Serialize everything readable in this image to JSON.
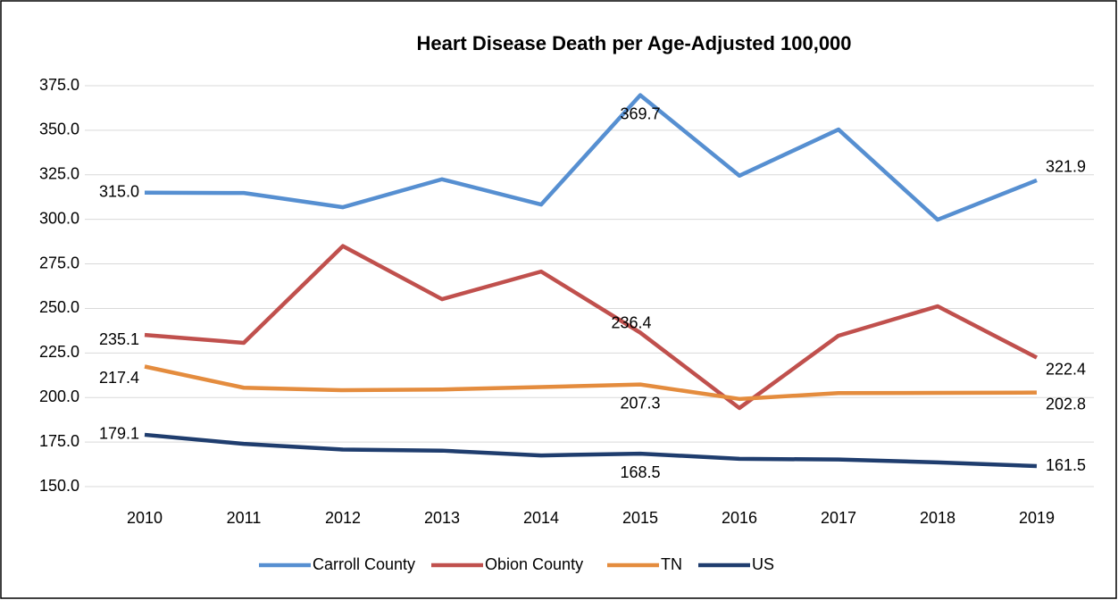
{
  "chart_data": {
    "type": "line",
    "title": "Heart Disease Death per Age-Adjusted 100,000",
    "categories": [
      "2010",
      "2011",
      "2012",
      "2013",
      "2014",
      "2015",
      "2016",
      "2017",
      "2018",
      "2019"
    ],
    "series": [
      {
        "name": "Carroll County",
        "color": "#568fd1",
        "values": [
          315.0,
          314.8,
          306.8,
          322.5,
          308.3,
          369.7,
          324.5,
          350.4,
          299.8,
          321.9
        ],
        "value_labels": [
          "315.0",
          null,
          null,
          null,
          null,
          "369.7",
          null,
          null,
          null,
          "321.9"
        ]
      },
      {
        "name": "Obion County",
        "color": "#c0504d",
        "values": [
          235.1,
          230.7,
          285.0,
          255.2,
          270.7,
          236.4,
          194.1,
          234.7,
          251.2,
          222.4
        ],
        "value_labels": [
          "235.1",
          null,
          null,
          null,
          null,
          "236.4",
          null,
          null,
          null,
          "222.4"
        ]
      },
      {
        "name": "TN",
        "color": "#e48c3e",
        "values": [
          217.4,
          205.5,
          204.1,
          204.5,
          205.9,
          207.3,
          199.2,
          202.5,
          202.6,
          202.8
        ],
        "value_labels": [
          "217.4",
          null,
          null,
          null,
          null,
          "207.3",
          null,
          null,
          null,
          "202.8"
        ]
      },
      {
        "name": "US",
        "color": "#1f3d6e",
        "values": [
          179.1,
          174.0,
          170.8,
          170.2,
          167.5,
          168.5,
          165.6,
          165.2,
          163.6,
          161.5
        ],
        "value_labels": [
          "179.1",
          null,
          null,
          null,
          null,
          "168.5",
          null,
          null,
          null,
          "161.5"
        ]
      }
    ],
    "ylim": [
      150,
      375
    ],
    "yticks": [
      {
        "value": 150,
        "label": "150.0"
      },
      {
        "value": 175,
        "label": "175.0"
      },
      {
        "value": 200,
        "label": "200.0"
      },
      {
        "value": 225,
        "label": "225.0"
      },
      {
        "value": 250,
        "label": "250.0"
      },
      {
        "value": 275,
        "label": "275.0"
      },
      {
        "value": 300,
        "label": "300.0"
      },
      {
        "value": 325,
        "label": "325.0"
      },
      {
        "value": 350,
        "label": "350.0"
      },
      {
        "value": 375,
        "label": "375.0"
      }
    ],
    "grid": true,
    "legend": "bottom"
  }
}
